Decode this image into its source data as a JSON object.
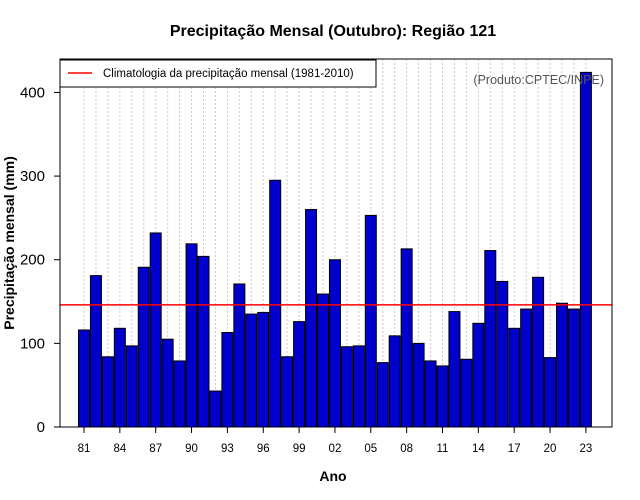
{
  "chart_data": {
    "type": "bar",
    "title": "Precipitação Mensal (Outubro): Região 121",
    "xlabel": "Ano",
    "ylabel": "Precipitação mensal (mm)",
    "source": "(Produto:CPTEC/INPE)",
    "legend": {
      "label": "Climatologia da precipitação mensal (1981-2010)",
      "position": "top-left"
    },
    "climatology": 146,
    "ylim": [
      0,
      440
    ],
    "yticks": [
      0,
      100,
      200,
      300,
      400
    ],
    "categories": [
      "81",
      "82",
      "83",
      "84",
      "85",
      "86",
      "87",
      "88",
      "89",
      "90",
      "91",
      "92",
      "93",
      "94",
      "95",
      "96",
      "97",
      "98",
      "99",
      "00",
      "01",
      "02",
      "03",
      "04",
      "05",
      "06",
      "07",
      "08",
      "09",
      "10",
      "11",
      "12",
      "13",
      "14",
      "15",
      "16",
      "17",
      "18",
      "19",
      "20",
      "21",
      "22",
      "23"
    ],
    "xtick_labels": [
      "81",
      "84",
      "87",
      "90",
      "93",
      "96",
      "99",
      "02",
      "05",
      "08",
      "11",
      "14",
      "17",
      "20",
      "23"
    ],
    "values": [
      116,
      181,
      84,
      118,
      97,
      191,
      232,
      105,
      79,
      219,
      204,
      43,
      113,
      171,
      135,
      137,
      295,
      84,
      126,
      260,
      159,
      200,
      96,
      97,
      253,
      77,
      109,
      213,
      100,
      79,
      73,
      138,
      81,
      124,
      211,
      174,
      118,
      141,
      179,
      83,
      148,
      141,
      424
    ],
    "colors": {
      "bar": "#0000cc",
      "bar_edge": "#000000",
      "climatology_line": "#ff0000",
      "grid": "#cccccc"
    }
  }
}
